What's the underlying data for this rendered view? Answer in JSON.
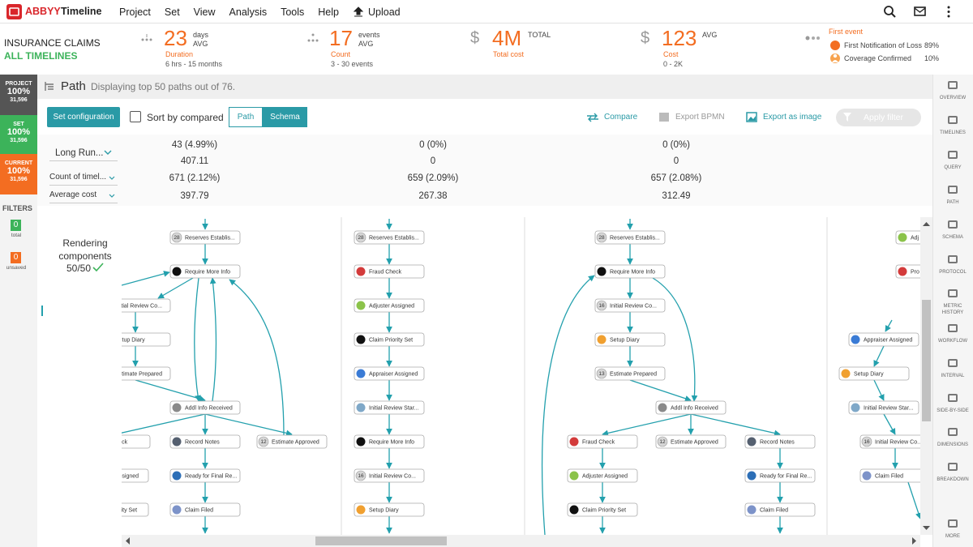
{
  "header": {
    "brand": "ABBYY",
    "product": "Timeline",
    "menu": [
      "Project",
      "Set",
      "View",
      "Analysis",
      "Tools",
      "Help"
    ],
    "upload": "Upload"
  },
  "summary": {
    "title": "INSURANCE CLAIMS",
    "subtitle": "ALL TIMELINES",
    "kpis": [
      {
        "value": "23",
        "unit": "days",
        "qualifier": "AVG",
        "label": "Duration",
        "range": "6 hrs - 15 months"
      },
      {
        "value": "17",
        "unit": "events",
        "qualifier": "AVG",
        "label": "Count",
        "range": "3 - 30 events"
      },
      {
        "currency": "$",
        "value": "4M",
        "qualifier": "TOTAL",
        "label": "Total cost"
      },
      {
        "currency": "$",
        "value": "123",
        "qualifier": "AVG",
        "label": "Cost",
        "range": "0 - 2K"
      }
    ],
    "first_event": {
      "title": "First event",
      "items": [
        {
          "name": "First Notification of Loss",
          "share": "89%"
        },
        {
          "name": "Coverage Confirmed",
          "share": "10%"
        }
      ]
    }
  },
  "sidebar": {
    "blocks": [
      {
        "name": "PROJECT",
        "percent": "100%",
        "count": "31,596",
        "color": "#555555"
      },
      {
        "name": "SET",
        "percent": "100%",
        "count": "31,596",
        "color": "#3cb35a"
      },
      {
        "name": "CURRENT",
        "percent": "100%",
        "count": "31,596",
        "color": "#f36d21"
      }
    ],
    "filters_title": "FILTERS",
    "filters": [
      {
        "count": "0",
        "label": "total",
        "color": "#3cb35a"
      },
      {
        "count": "0",
        "label": "unsaved",
        "color": "#f36d21"
      }
    ]
  },
  "path_view": {
    "title": "Path",
    "description": "Displaying top 50 paths out of 76.",
    "toolbar": {
      "configure": "Set configuration",
      "sort": "Sort by compared",
      "modes": [
        "Path",
        "Schema"
      ],
      "compare": "Compare",
      "export_bpmn": "Export BPMN",
      "export_image": "Export as image",
      "apply": "Apply filter"
    },
    "metrics": {
      "rows": [
        {
          "label": "Long Run...",
          "values": [
            [
              "43 (4.99%)",
              "407.11"
            ],
            [
              "0 (0%)",
              "0"
            ],
            [
              "0 (0%)",
              "0"
            ]
          ]
        },
        {
          "label": "Count of timel...",
          "values": [
            "671 (2.12%)",
            "659 (2.09%)",
            "657 (2.08%)"
          ]
        },
        {
          "label": "Average cost",
          "values": [
            "397.79",
            "267.38",
            "312.49"
          ]
        }
      ]
    },
    "rendering": {
      "label": "Rendering components",
      "progress": "50/50"
    },
    "panels": [
      {
        "nodes": [
          {
            "count": "28",
            "label": "Reserves Establis..."
          },
          {
            "icon": "#111111",
            "label": "Require More Info"
          },
          {
            "icon": "#9aa8b8",
            "label": "Initial Review Co..."
          },
          {
            "icon": "#f0a030",
            "label": "Setup Diary"
          },
          {
            "icon": "#9aa8b8",
            "label": "Estimate Prepared"
          },
          {
            "icon": "#8a8a8a",
            "label": "Addl Info Received"
          },
          {
            "icon": "#d33b3b",
            "label": "Fraud Check"
          },
          {
            "icon": "#556070",
            "label": "Record Notes"
          },
          {
            "count": "12",
            "label": "Estimate Approved"
          },
          {
            "icon": "#8bc34a",
            "label": "Adjuster Assigned"
          },
          {
            "icon": "#2d6fb7",
            "label": "Ready for Final Re..."
          },
          {
            "icon": "#111111",
            "label": "Claim Priority Set"
          },
          {
            "icon": "#7d93c9",
            "label": "Claim Filed"
          }
        ]
      },
      {
        "nodes": [
          {
            "count": "28",
            "label": "Reserves Establis..."
          },
          {
            "icon": "#d33b3b",
            "label": "Fraud Check"
          },
          {
            "icon": "#8bc34a",
            "label": "Adjuster Assigned"
          },
          {
            "icon": "#111111",
            "label": "Claim Priority Set"
          },
          {
            "icon": "#3a7bd5",
            "label": "Appraiser Assigned"
          },
          {
            "icon": "#7fa8c8",
            "label": "Initial Review Star..."
          },
          {
            "icon": "#111111",
            "label": "Require More Info"
          },
          {
            "count": "16",
            "label": "Initial Review Co..."
          },
          {
            "icon": "#f0a030",
            "label": "Setup Diary"
          }
        ]
      },
      {
        "nodes": [
          {
            "count": "28",
            "label": "Reserves Establis..."
          },
          {
            "icon": "#111111",
            "label": "Require More Info"
          },
          {
            "count": "16",
            "label": "Initial Review Co..."
          },
          {
            "icon": "#f0a030",
            "label": "Setup Diary"
          },
          {
            "count": "13",
            "label": "Estimate Prepared"
          },
          {
            "icon": "#8a8a8a",
            "label": "Addl Info Received"
          },
          {
            "icon": "#d33b3b",
            "label": "Fraud Check"
          },
          {
            "count": "12",
            "label": "Estimate Approved"
          },
          {
            "icon": "#556070",
            "label": "Record Notes"
          },
          {
            "icon": "#8bc34a",
            "label": "Adjuster Assigned"
          },
          {
            "icon": "#2d6fb7",
            "label": "Ready for Final Re..."
          },
          {
            "icon": "#111111",
            "label": "Claim Priority Set"
          },
          {
            "icon": "#7d93c9",
            "label": "Claim Filed"
          }
        ]
      },
      {
        "nodes": [
          {
            "icon": "#8bc34a",
            "label": "Adj"
          },
          {
            "icon": "#d33b3b",
            "label": "Pro"
          },
          {
            "icon": "#3a7bd5",
            "label": "Appraiser Assigned"
          },
          {
            "icon": "#f0a030",
            "label": "Setup Diary"
          },
          {
            "icon": "#7fa8c8",
            "label": "Initial Review Star..."
          },
          {
            "count": "16",
            "label": "Initial Review Co..."
          },
          {
            "icon": "#7d93c9",
            "label": "Claim Filed"
          }
        ]
      }
    ]
  },
  "nav": [
    "OVERVIEW",
    "TIMELINES",
    "QUERY",
    "PATH",
    "SCHEMA",
    "PROTOCOL",
    "METRIC HISTORY",
    "WORKFLOW",
    "INTERVAL",
    "SIDE-BY-SIDE",
    "DIMENSIONS",
    "BREAKDOWN",
    "MORE"
  ]
}
